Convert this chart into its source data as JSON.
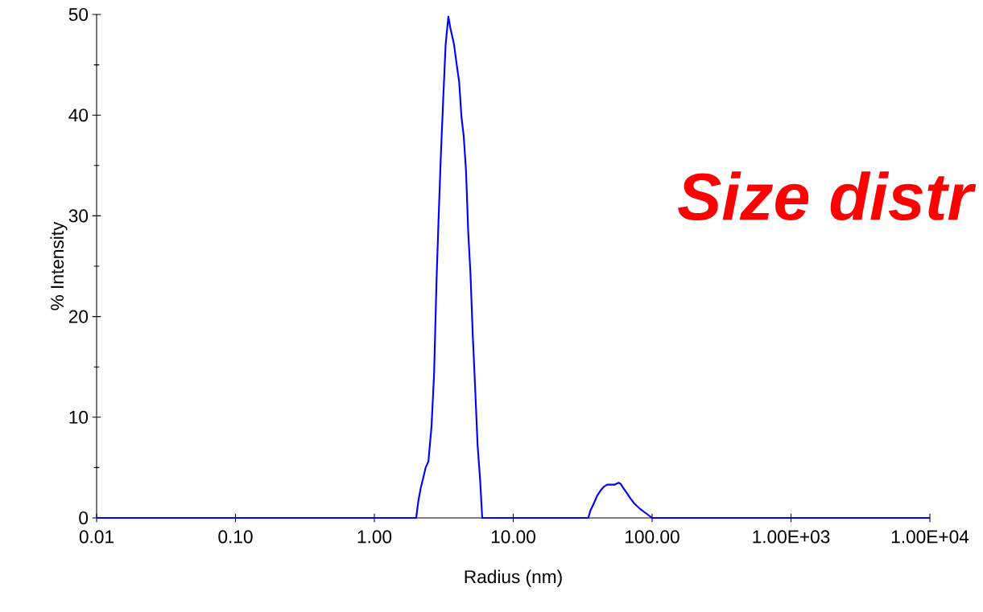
{
  "chart_data": {
    "type": "line",
    "xlabel": "Radius (nm)",
    "ylabel": "% Intensity",
    "color": "#0000ff",
    "log": "x",
    "xlim": [
      0.01,
      10000
    ],
    "ylim": [
      0,
      50
    ],
    "xticks": [
      0.01,
      {
        "value": 0.1,
        "label": "0.10"
      },
      {
        "value": 1,
        "label": "1.00"
      },
      {
        "value": 10,
        "label": "10.00"
      },
      {
        "value": 100,
        "label": "100.00"
      },
      {
        "value": 1000,
        "label": "1.00E+03"
      },
      {
        "value": 10000,
        "label": "1.00E+04"
      }
    ],
    "yticks": [
      0,
      10,
      20,
      30,
      40,
      50
    ],
    "x": [
      0.01,
      2.0,
      2.08,
      2.16,
      2.25,
      2.34,
      2.45,
      2.58,
      2.69,
      2.8,
      2.9,
      3.01,
      3.13,
      3.26,
      3.41,
      3.52,
      3.75,
      3.91,
      4.08,
      4.24,
      4.4,
      4.57,
      4.74,
      4.92,
      5.11,
      5.31,
      5.54,
      5.78,
      5.98,
      34.7,
      35.9,
      37.9,
      40.2,
      43.0,
      44.9,
      47.6,
      53.6,
      57.3,
      59.2,
      61.8,
      65.5,
      70.0,
      74.8,
      81.8,
      89.5,
      95.7,
      100,
      10000
    ],
    "values": [
      0,
      0,
      1.8,
      3.0,
      4.0,
      5.0,
      5.6,
      9.1,
      14.2,
      23.3,
      29.7,
      35.9,
      41.5,
      47.0,
      49.8,
      48.7,
      47.0,
      45.1,
      43.3,
      39.8,
      37.9,
      34.5,
      28.4,
      24.3,
      18.2,
      13.1,
      7.2,
      3.7,
      0,
      0,
      0.7,
      1.4,
      2.2,
      2.8,
      3.1,
      3.3,
      3.3,
      3.5,
      3.4,
      3.0,
      2.5,
      1.9,
      1.4,
      0.9,
      0.5,
      0.2,
      0,
      0
    ],
    "annotations": [
      "Size distr"
    ]
  }
}
